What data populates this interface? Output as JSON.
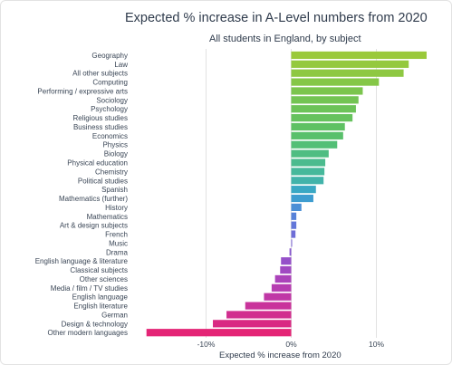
{
  "chart_data": {
    "type": "bar",
    "orientation": "horizontal",
    "title": "Expected % increase in A-Level numbers from 2020",
    "subtitle": "All students in England, by subject",
    "xlabel": "Expected % increase from 2020",
    "ylabel": "",
    "xlim": [
      -17,
      16
    ],
    "xticks": [
      -10,
      0,
      10
    ],
    "xtick_labels": [
      "-10%",
      "0%",
      "10%"
    ],
    "grid": "vertical gridlines at -10, 0 and 10",
    "categories": [
      "Geography",
      "Law",
      "All other subjects",
      "Computing",
      "Performing / expressive arts",
      "Sociology",
      "Psychology",
      "Religious studies",
      "Business studies",
      "Economics",
      "Physics",
      "Biology",
      "Physical education",
      "Chemistry",
      "Political studies",
      "Spanish",
      "Mathematics (further)",
      "History",
      "Mathematics",
      "Art & design subjects",
      "French",
      "Music",
      "Drama",
      "English language & literature",
      "Classical subjects",
      "Other sciences",
      "Media / film / TV studies",
      "English language",
      "English literature",
      "German",
      "Design & technology",
      "Other modern languages"
    ],
    "values": [
      15.9,
      13.8,
      13.2,
      10.3,
      8.4,
      7.9,
      7.6,
      7.2,
      6.3,
      6.1,
      5.4,
      4.4,
      4.0,
      3.9,
      3.8,
      2.9,
      2.6,
      1.2,
      0.6,
      0.6,
      0.5,
      0.1,
      -0.2,
      -1.2,
      -1.3,
      -1.9,
      -2.3,
      -3.2,
      -5.4,
      -7.6,
      -9.2,
      -17.0
    ],
    "colors": [
      "#9ac93a",
      "#94c93e",
      "#8ec842",
      "#85c747",
      "#7bc54d",
      "#73c453",
      "#6cc358",
      "#66c25d",
      "#5fc163",
      "#59c06b",
      "#53bf76",
      "#4fbd82",
      "#4bbb8e",
      "#46b89b",
      "#42b3aa",
      "#3aa8c4",
      "#3e9dd0",
      "#4b8fd6",
      "#5782d9",
      "#6377d9",
      "#6e6dd7",
      "#7b63d4",
      "#8859cf",
      "#9550c9",
      "#a049c2",
      "#ab43ba",
      "#b63db1",
      "#c038a6",
      "#c9339b",
      "#d12e8f",
      "#d92a83",
      "#e42576"
    ]
  }
}
